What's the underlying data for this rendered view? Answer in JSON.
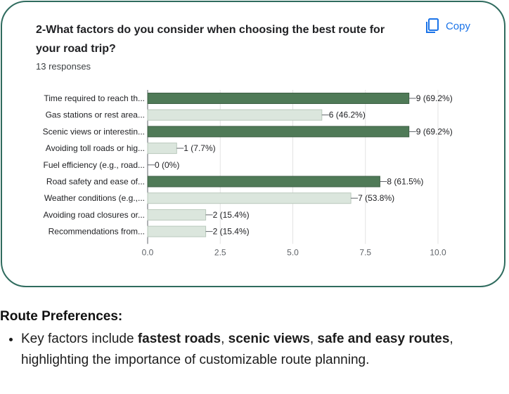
{
  "card": {
    "question": "2-What factors do you consider when choosing the best route for your road trip?",
    "responses": "13 responses",
    "copy_label": "Copy",
    "copy_icon": "copy-icon"
  },
  "chart_data": {
    "type": "bar",
    "orientation": "horizontal",
    "categories": [
      "Time required to reach th...",
      "Gas stations or rest area...",
      "Scenic views or interestin...",
      "Avoiding toll roads or hig...",
      "Fuel efficiency (e.g., road...",
      "Road safety and ease of...",
      "Weather conditions (e.g.,...",
      "Avoiding road closures or...",
      "Recommendations from..."
    ],
    "values": [
      9,
      6,
      9,
      1,
      0,
      8,
      7,
      2,
      2
    ],
    "data_labels": [
      "9 (69.2%)",
      "6 (46.2%)",
      "9 (69.2%)",
      "1 (7.7%)",
      "0 (0%)",
      "8 (61.5%)",
      "7 (53.8%)",
      "2 (15.4%)",
      "2 (15.4%)"
    ],
    "highlighted": [
      true,
      false,
      true,
      false,
      false,
      true,
      false,
      false,
      false
    ],
    "x_ticks": [
      "0.0",
      "2.5",
      "5.0",
      "7.5",
      "10.0"
    ],
    "xlim": [
      0,
      10
    ],
    "grid": true,
    "colors": {
      "highlight": "#4f7a57",
      "normal": "#dbe6dd",
      "normal_border": "#b9c9bc",
      "axis": "#5f6368"
    }
  },
  "summary": {
    "heading": "Route Preferences:",
    "bullet": {
      "t1": "Key factors include ",
      "b1": "fastest roads",
      "t2": ", ",
      "b2": "scenic views",
      "t3": ", ",
      "b3": "safe and easy routes",
      "t4": ", highlighting the importance of customizable route planning."
    }
  }
}
